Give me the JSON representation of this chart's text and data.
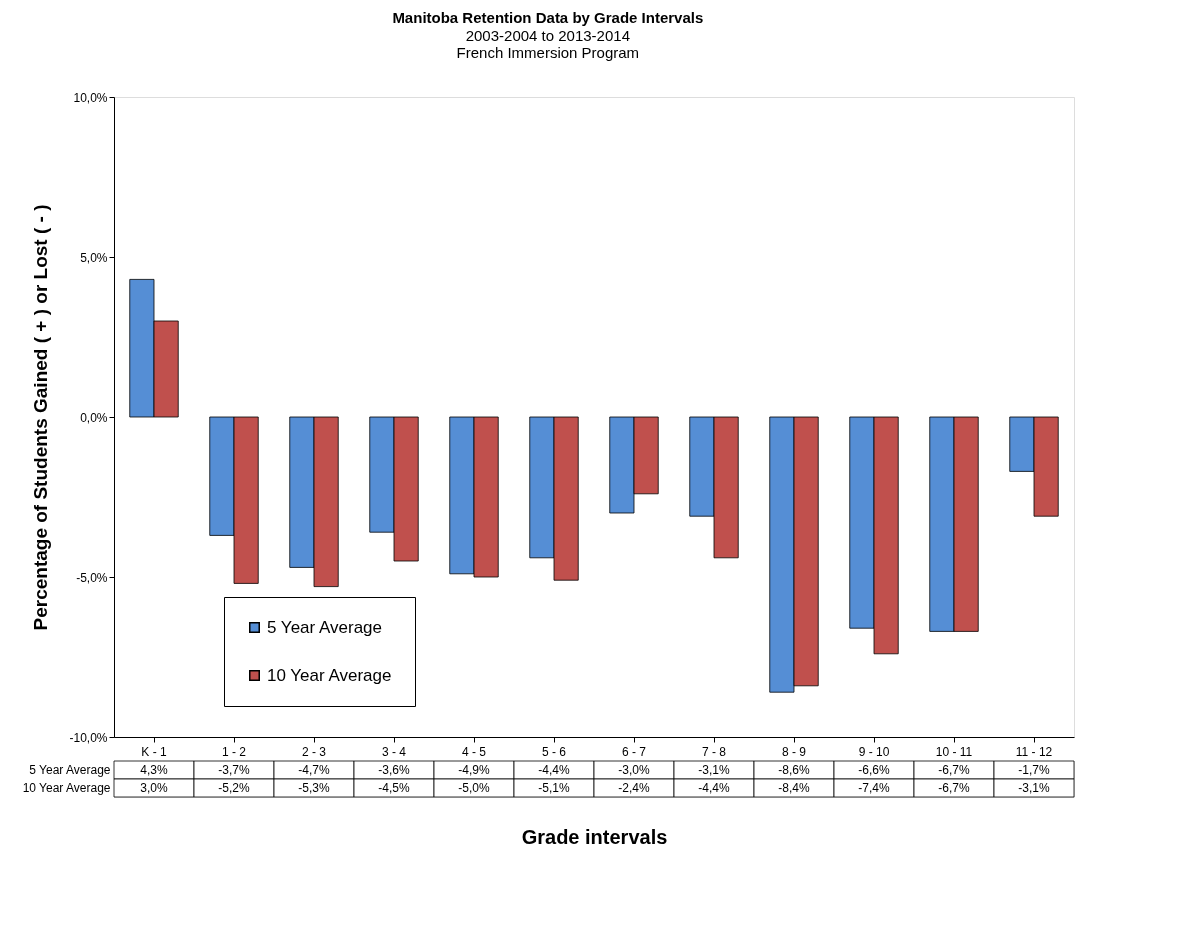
{
  "chart_data": {
    "type": "bar",
    "title": "Manitoba Retention Data by Grade Intervals",
    "subtitle": "2003-2004 to 2013-2014\nFrench Immersion Program",
    "xlabel": "Grade intervals",
    "ylabel": "Percentage of Students Gained ( + ) or Lost ( - )",
    "categories": [
      "K - 1",
      "1 - 2",
      "2 - 3",
      "3 - 4",
      "4 - 5",
      "5 - 6",
      "6 - 7",
      "7 - 8",
      "8 - 9",
      "9 - 10",
      "10 - 11",
      "11 - 12"
    ],
    "series": [
      {
        "name": "5 Year Average",
        "color": "#558ed5",
        "values": [
          4.3,
          -3.7,
          -4.7,
          -3.6,
          -4.9,
          -4.4,
          -3.0,
          -3.1,
          -8.6,
          -6.6,
          -6.7,
          -1.7
        ],
        "value_labels": [
          "4,3%",
          "-3,7%",
          "-4,7%",
          "-3,6%",
          "-4,9%",
          "-4,4%",
          "-3,0%",
          "-3,1%",
          "-8,6%",
          "-6,6%",
          "-6,7%",
          "-1,7%"
        ]
      },
      {
        "name": "10 Year Average",
        "color": "#c0504d",
        "values": [
          3.0,
          -5.2,
          -5.3,
          -4.5,
          -5.0,
          -5.1,
          -2.4,
          -4.4,
          -8.4,
          -7.4,
          -6.7,
          -3.1
        ],
        "value_labels": [
          "3,0%",
          "-5,2%",
          "-5,3%",
          "-4,5%",
          "-5,0%",
          "-5,1%",
          "-2,4%",
          "-4,4%",
          "-8,4%",
          "-7,4%",
          "-6,7%",
          "-3,1%"
        ]
      }
    ],
    "ylim": [
      -10,
      10
    ],
    "yticks": [
      {
        "value": -10,
        "label": "-10,0%"
      },
      {
        "value": -5,
        "label": "-5,0%"
      },
      {
        "value": 0,
        "label": "0,0%"
      },
      {
        "value": 5,
        "label": "5,0%"
      },
      {
        "value": 10,
        "label": "10,0%"
      }
    ],
    "grid": false,
    "legend": "bottom left"
  }
}
